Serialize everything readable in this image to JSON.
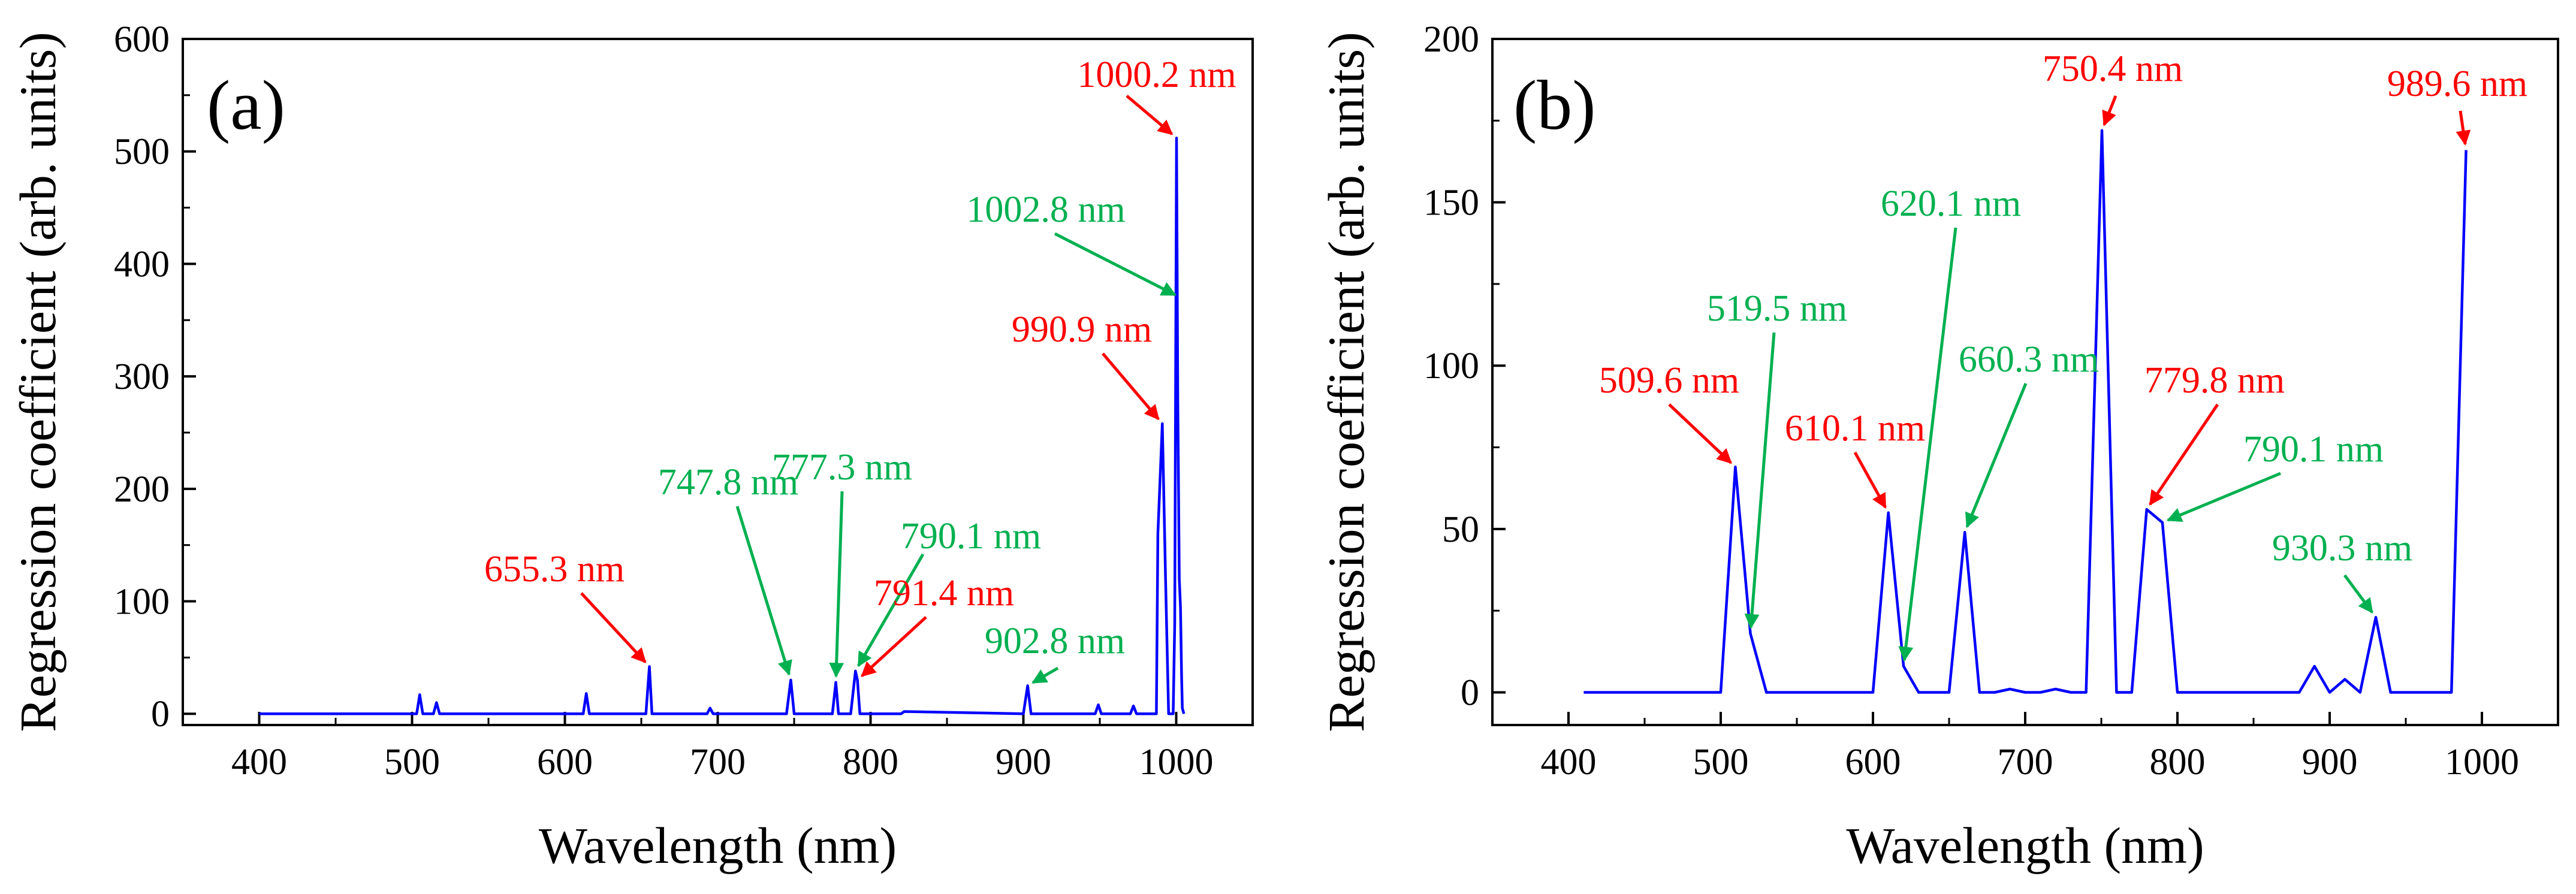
{
  "colors": {
    "line": "#0000ff",
    "red_annotation": "#ff0000",
    "green_annotation": "#00b050",
    "axis": "#000000"
  },
  "chart_data": [
    {
      "type": "line",
      "panel_label": "(a)",
      "xlabel": "Wavelength (nm)",
      "ylabel": "Regression coefficient (arb. units)",
      "xlim": [
        350,
        1050
      ],
      "ylim": [
        -10,
        600
      ],
      "xticks": [
        400,
        500,
        600,
        700,
        800,
        900,
        1000
      ],
      "yticks": [
        0,
        100,
        200,
        300,
        400,
        500,
        600
      ],
      "grid": false,
      "series": [
        {
          "x": [
            400,
            503,
            505,
            507,
            514,
            516,
            518,
            612,
            614,
            616,
            653,
            655.3,
            657,
            693,
            695,
            697,
            745,
            747.8,
            750,
            775,
            777.3,
            779,
            787,
            790.1,
            791.4,
            793,
            820,
            822,
            900,
            902.8,
            905,
            947,
            949,
            951,
            970,
            972,
            974,
            987,
            988,
            990.9,
            993,
            995,
            998,
            999,
            1000.2,
            1001,
            1002,
            1002.8,
            1003.5,
            1004,
            1005
          ],
          "y": [
            0,
            0,
            17,
            0,
            0,
            10,
            0,
            0,
            18,
            0,
            0,
            42,
            0,
            0,
            5,
            0,
            0,
            30,
            0,
            0,
            28,
            0,
            0,
            38,
            30,
            0,
            0,
            2,
            0,
            25,
            0,
            0,
            8,
            0,
            0,
            7,
            0,
            0,
            160,
            258,
            120,
            0,
            0,
            80,
            512,
            280,
            120,
            95,
            35,
            5,
            0
          ]
        }
      ],
      "annotations": [
        {
          "text": "1000.2 nm",
          "color": "red",
          "x": 1000.2,
          "y": 512
        },
        {
          "text": "1002.8 nm",
          "color": "green",
          "x": 1002.8,
          "y": 370
        },
        {
          "text": "990.9 nm",
          "color": "red",
          "x": 990.9,
          "y": 258
        },
        {
          "text": "655.3 nm",
          "color": "red",
          "x": 655.3,
          "y": 42
        },
        {
          "text": "747.8 nm",
          "color": "green",
          "x": 747.8,
          "y": 30
        },
        {
          "text": "777.3 nm",
          "color": "green",
          "x": 777.3,
          "y": 28
        },
        {
          "text": "790.1 nm",
          "color": "green",
          "x": 790.1,
          "y": 38
        },
        {
          "text": "791.4 nm",
          "color": "red",
          "x": 791.4,
          "y": 30
        },
        {
          "text": "902.8 nm",
          "color": "green",
          "x": 902.8,
          "y": 25
        }
      ]
    },
    {
      "type": "line",
      "panel_label": "(b)",
      "xlabel": "Wavelength (nm)",
      "ylabel": "Regression coefficient (arb. units)",
      "xlim": [
        350,
        1050
      ],
      "ylim": [
        -10,
        200
      ],
      "xticks": [
        400,
        500,
        600,
        700,
        800,
        900,
        1000
      ],
      "yticks": [
        0,
        50,
        100,
        150,
        200
      ],
      "grid": false,
      "series": [
        {
          "x": [
            410,
            500,
            509.6,
            519.5,
            530,
            600,
            610.1,
            620.1,
            630,
            650,
            660.3,
            670,
            680,
            690,
            700,
            710,
            720,
            730,
            740,
            750.4,
            760,
            770,
            779.8,
            790.1,
            800,
            810,
            880,
            890,
            900,
            910,
            920,
            930.3,
            940,
            980,
            989.6
          ],
          "y": [
            0,
            0,
            69,
            18,
            0,
            0,
            55,
            8,
            0,
            0,
            49,
            0,
            0,
            1,
            0,
            0,
            1,
            0,
            0,
            172,
            0,
            0,
            56,
            52,
            0,
            0,
            0,
            8,
            0,
            4,
            0,
            23,
            0,
            0,
            166
          ]
        }
      ],
      "annotations": [
        {
          "text": "509.6 nm",
          "color": "red",
          "x": 509.6,
          "y": 69
        },
        {
          "text": "519.5 nm",
          "color": "green",
          "x": 519.5,
          "y": 18
        },
        {
          "text": "610.1 nm",
          "color": "red",
          "x": 610.1,
          "y": 55
        },
        {
          "text": "620.1 nm",
          "color": "green",
          "x": 620.1,
          "y": 8
        },
        {
          "text": "660.3 nm",
          "color": "green",
          "x": 660.3,
          "y": 49
        },
        {
          "text": "750.4 nm",
          "color": "red",
          "x": 750.4,
          "y": 172
        },
        {
          "text": "779.8 nm",
          "color": "red",
          "x": 779.8,
          "y": 56
        },
        {
          "text": "790.1 nm",
          "color": "green",
          "x": 790.1,
          "y": 52
        },
        {
          "text": "930.3 nm",
          "color": "green",
          "x": 930.3,
          "y": 23
        },
        {
          "text": "989.6 nm",
          "color": "red",
          "x": 989.6,
          "y": 166
        }
      ]
    }
  ]
}
